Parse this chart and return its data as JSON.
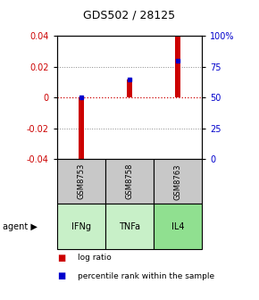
{
  "title": "GDS502 / 28125",
  "samples": [
    "GSM8753",
    "GSM8758",
    "GSM8763"
  ],
  "agents": [
    "IFNg",
    "TNFa",
    "IL4"
  ],
  "log_ratios": [
    -0.041,
    0.012,
    0.04
  ],
  "percentile_ranks": [
    0.5,
    0.65,
    0.8
  ],
  "ylim_left": [
    -0.04,
    0.04
  ],
  "ylim_right": [
    0,
    100
  ],
  "yticks_left": [
    -0.04,
    -0.02,
    0,
    0.02,
    0.04
  ],
  "yticks_right": [
    0,
    25,
    50,
    75,
    100
  ],
  "ytick_labels_left": [
    "-0.04",
    "-0.02",
    "0",
    "0.02",
    "0.04"
  ],
  "ytick_labels_right": [
    "0",
    "25",
    "50",
    "75",
    "100%"
  ],
  "bar_color": "#cc0000",
  "dot_color": "#0000cc",
  "sample_bg": "#c8c8c8",
  "agent_bg_light": "#c8f0c8",
  "agent_bg_medium": "#90e090",
  "zero_line_color": "#cc0000",
  "bar_width": 0.12
}
